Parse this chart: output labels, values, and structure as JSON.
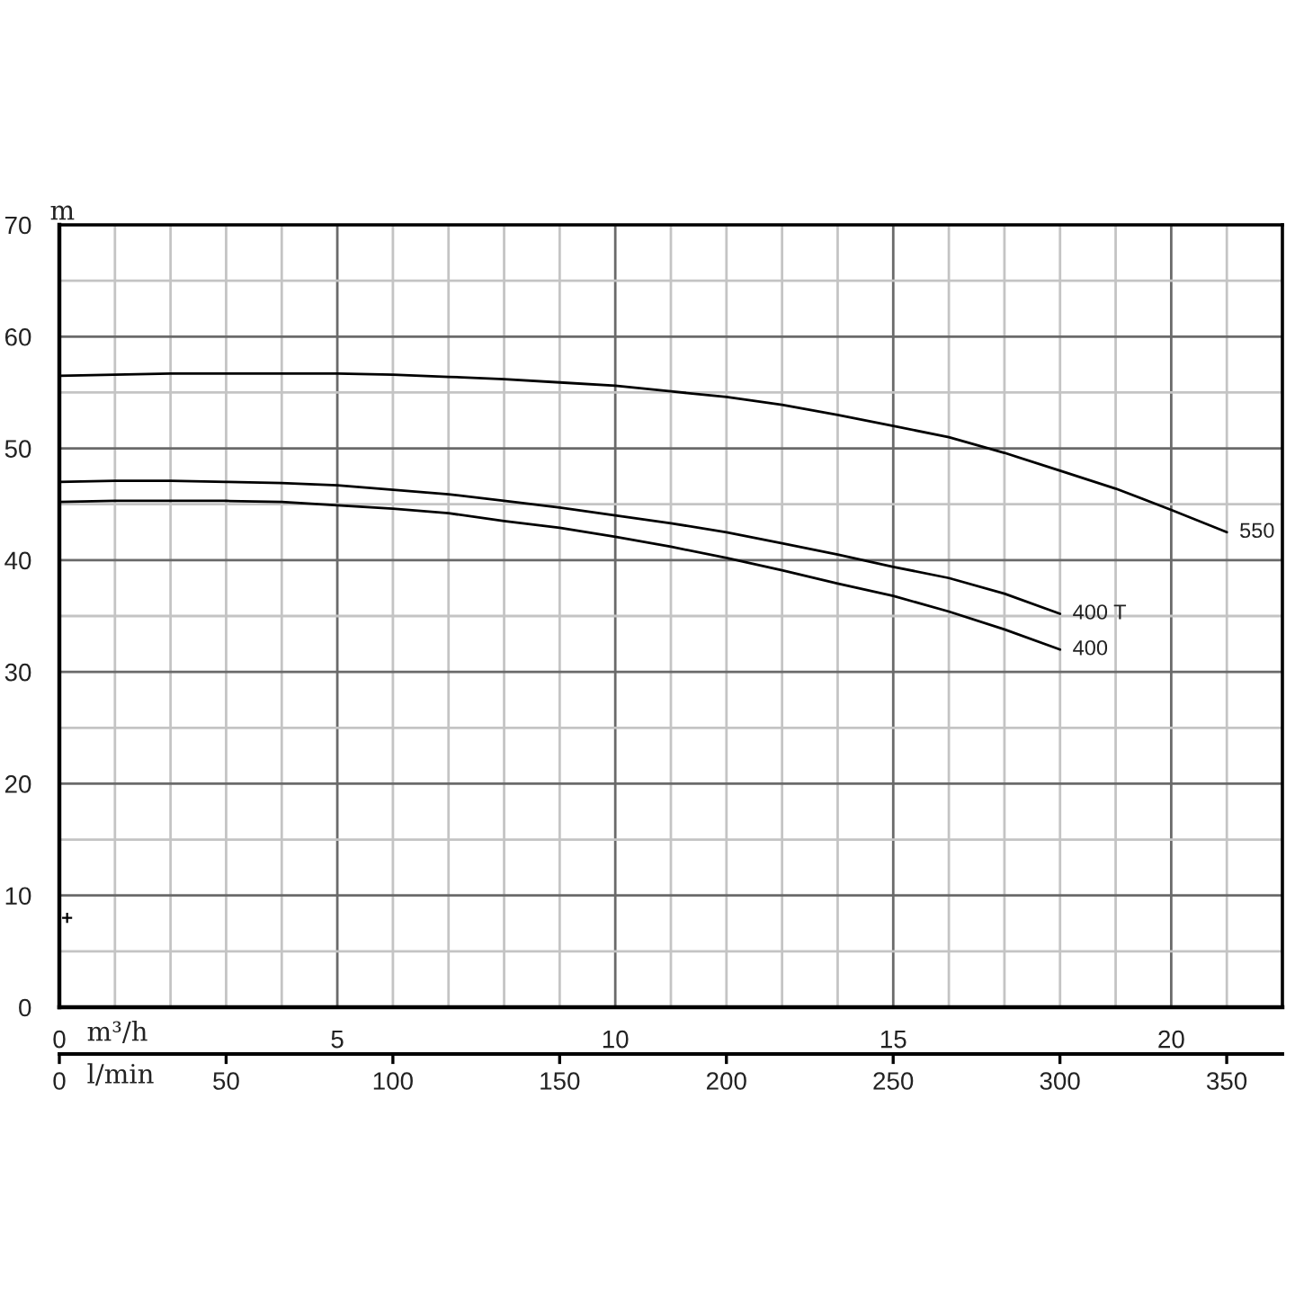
{
  "chart_data": {
    "type": "line",
    "xlabel": "m³/h",
    "ylabel": "m",
    "x2label": "l/min",
    "xlim": [
      0,
      22
    ],
    "xticks": [
      0,
      {
        "value": 1,
        "label": null
      },
      {
        "value": 2,
        "label": null
      },
      {
        "value": 3,
        "label": null
      },
      {
        "value": 4,
        "label": null
      },
      5,
      {
        "value": 6,
        "label": null
      },
      {
        "value": 7,
        "label": null
      },
      {
        "value": 8,
        "label": null
      },
      {
        "value": 9,
        "label": null
      },
      10,
      {
        "value": 11,
        "label": null
      },
      {
        "value": 12,
        "label": null
      },
      {
        "value": 13,
        "label": null
      },
      {
        "value": 14,
        "label": null
      },
      15,
      {
        "value": 16,
        "label": null
      },
      {
        "value": 17,
        "label": null
      },
      {
        "value": 18,
        "label": null
      },
      {
        "value": 19,
        "label": null
      },
      20,
      {
        "value": 21,
        "label": null
      }
    ],
    "x2lim": [
      0,
      366.7
    ],
    "x2ticks": [
      0,
      50,
      100,
      150,
      200,
      250,
      300,
      350
    ],
    "ylim": [
      0,
      70
    ],
    "yticks": [
      0,
      {
        "value": 5,
        "label": null
      },
      10,
      {
        "value": 15,
        "label": null
      },
      20,
      {
        "value": 25,
        "label": null
      },
      30,
      {
        "value": 35,
        "label": null
      },
      40,
      {
        "value": 45,
        "label": null
      },
      50,
      {
        "value": 55,
        "label": null
      },
      60,
      {
        "value": 65,
        "label": null
      },
      70
    ],
    "grid": true,
    "line_style": "solid",
    "series": [
      {
        "name": "550",
        "color": "#000000",
        "x": [
          0,
          1,
          2,
          3,
          4,
          5,
          6,
          7,
          8,
          9,
          10,
          11,
          12,
          13,
          14,
          15,
          16,
          17,
          18,
          19,
          20,
          21
        ],
        "values": [
          56.5,
          56.6,
          56.7,
          56.7,
          56.7,
          56.7,
          56.6,
          56.4,
          56.2,
          55.9,
          55.6,
          55.1,
          54.6,
          53.9,
          53.0,
          52.0,
          51.0,
          49.6,
          48.0,
          46.4,
          44.5,
          42.5
        ]
      },
      {
        "name": "400 T",
        "color": "#000000",
        "x": [
          0,
          1,
          2,
          3,
          4,
          5,
          6,
          7,
          8,
          9,
          10,
          11,
          12,
          13,
          14,
          15,
          16,
          17,
          18
        ],
        "values": [
          47.0,
          47.1,
          47.1,
          47.0,
          46.9,
          46.7,
          46.3,
          45.9,
          45.3,
          44.7,
          44.0,
          43.3,
          42.5,
          41.5,
          40.5,
          39.4,
          38.4,
          37.0,
          35.2
        ]
      },
      {
        "name": "400",
        "color": "#000000",
        "x": [
          0,
          1,
          2,
          3,
          4,
          5,
          6,
          7,
          8,
          9,
          10,
          11,
          12,
          13,
          14,
          15,
          16,
          17,
          18
        ],
        "values": [
          45.2,
          45.3,
          45.3,
          45.3,
          45.2,
          44.9,
          44.6,
          44.2,
          43.5,
          42.9,
          42.1,
          41.2,
          40.2,
          39.1,
          37.9,
          36.8,
          35.4,
          33.8,
          32.0
        ]
      },
      {
        "type": "scatter",
        "marker": "cross",
        "color": "#000000",
        "x": [
          0.14
        ],
        "values": [
          8
        ]
      }
    ]
  }
}
